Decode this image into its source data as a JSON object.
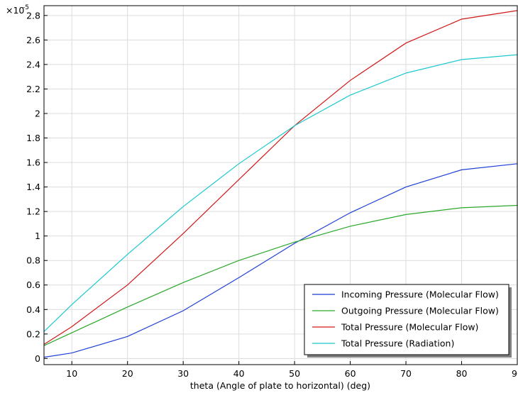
{
  "chart_data": {
    "type": "line",
    "xlabel": "theta (Angle of plate to horizontal) (deg)",
    "ylabel": "",
    "exponent_label": "×10",
    "exponent_power": "-5",
    "xlim": [
      5,
      90
    ],
    "ylim": [
      -0.05,
      2.88
    ],
    "xticks": [
      10,
      20,
      30,
      40,
      50,
      60,
      70,
      80,
      90
    ],
    "yticks": [
      0,
      0.2,
      0.4,
      0.6,
      0.8,
      1,
      1.2,
      1.4,
      1.6,
      1.8,
      2,
      2.2,
      2.4,
      2.6,
      2.8
    ],
    "grid": true,
    "legend_position": "bottom-right",
    "x": [
      5,
      10,
      20,
      30,
      40,
      50,
      60,
      70,
      80,
      90
    ],
    "series": [
      {
        "name": "Incoming Pressure (Molecular Flow)",
        "color": "#1f3fd8",
        "values": [
          0.01,
          0.045,
          0.18,
          0.39,
          0.66,
          0.94,
          1.19,
          1.4,
          1.54,
          1.59
        ]
      },
      {
        "name": "Outgoing Pressure (Molecular Flow)",
        "color": "#2aa82a",
        "values": [
          0.105,
          0.21,
          0.42,
          0.62,
          0.8,
          0.95,
          1.08,
          1.175,
          1.23,
          1.25
        ]
      },
      {
        "name": "Total Pressure (Molecular Flow)",
        "color": "#d01818",
        "values": [
          0.115,
          0.26,
          0.6,
          1.02,
          1.46,
          1.9,
          2.27,
          2.575,
          2.77,
          2.84
        ]
      },
      {
        "name": "Total Pressure (Radiation)",
        "color": "#1cc8d0",
        "values": [
          0.22,
          0.44,
          0.85,
          1.24,
          1.59,
          1.9,
          2.15,
          2.33,
          2.44,
          2.48
        ]
      }
    ]
  }
}
